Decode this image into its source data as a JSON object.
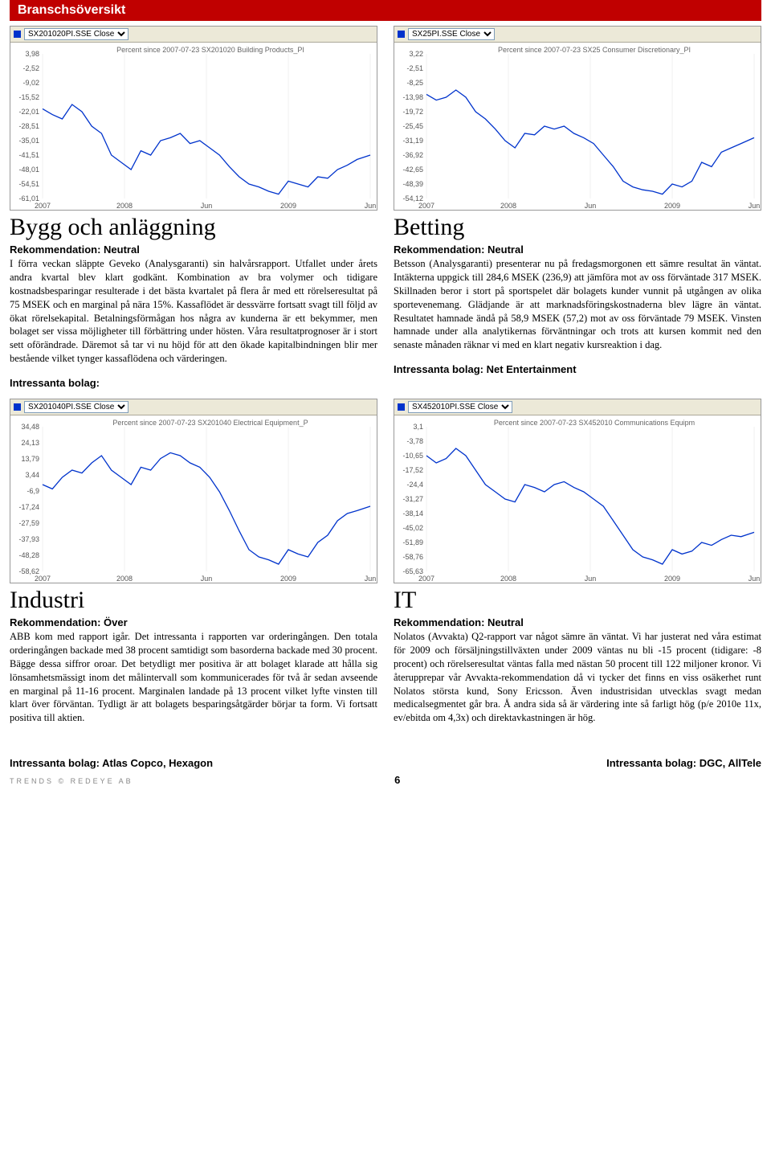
{
  "header": "Branschsöversikt",
  "sections": [
    {
      "title": "Bygg och anläggning",
      "rek": "Rekommendation: Neutral",
      "body": "I förra veckan släppte Geveko (Analysgaranti) sin halvårsrapport. Utfallet under årets andra kvartal blev klart godkänt. Kombination av bra volymer och tidigare kostnadsbesparingar resulterade i det bästa kvartalet på flera år med ett rörelseresultat på 75 MSEK och en marginal på nära 15%. Kassaflödet är dessvärre fortsatt svagt till följd av ökat rörelsekapital. Betalningsförmågan hos några av kunderna är ett bekymmer, men bolaget ser vissa möjligheter till förbättring under hösten. Våra resultatprognoser är i stort sett oförändrade. Däremot så tar vi nu höjd för att den ökade kapitalbindningen blir mer bestående vilket tynger kassaflödena och värderingen.",
      "intr": "Intressanta bolag:",
      "chart": {
        "selector": "SX201020PI.SSE Close",
        "subtitle": "Percent since 2007-07-23     SX201020 Building Products_PI",
        "yticks": [
          "3,98",
          "-2,52",
          "-9,02",
          "-15,52",
          "-22,01",
          "-28,51",
          "-35,01",
          "-41,51",
          "-48,01",
          "-54,51",
          "-61,01"
        ],
        "xticks": [
          "2007",
          "2008",
          "Jun",
          "2009",
          "Jun"
        ],
        "line_color": "#0033cc",
        "grid_color": "#e0e0e0",
        "points": [
          [
            0,
            62
          ],
          [
            3,
            58
          ],
          [
            6,
            55
          ],
          [
            9,
            65
          ],
          [
            12,
            60
          ],
          [
            15,
            50
          ],
          [
            18,
            45
          ],
          [
            21,
            30
          ],
          [
            24,
            25
          ],
          [
            27,
            20
          ],
          [
            30,
            33
          ],
          [
            33,
            30
          ],
          [
            36,
            40
          ],
          [
            39,
            42
          ],
          [
            42,
            45
          ],
          [
            45,
            38
          ],
          [
            48,
            40
          ],
          [
            51,
            35
          ],
          [
            54,
            30
          ],
          [
            57,
            22
          ],
          [
            60,
            15
          ],
          [
            63,
            10
          ],
          [
            66,
            8
          ],
          [
            69,
            5
          ],
          [
            72,
            3
          ],
          [
            75,
            12
          ],
          [
            78,
            10
          ],
          [
            81,
            8
          ],
          [
            84,
            15
          ],
          [
            87,
            14
          ],
          [
            90,
            20
          ],
          [
            93,
            23
          ],
          [
            96,
            27
          ],
          [
            100,
            30
          ]
        ]
      }
    },
    {
      "title": "Betting",
      "rek": "Rekommendation: Neutral",
      "body": "Betsson (Analysgaranti) presenterar nu på fredagsmorgonen ett sämre resultat än väntat. Intäkterna uppgick till 284,6 MSEK (236,9) att jämföra mot av oss förväntade 317 MSEK. Skillnaden beror i stort på sportspelet där bolagets kunder vunnit på utgången av olika sportevenemang. Glädjande är att marknadsföringskostnaderna blev lägre än väntat. Resultatet hamnade ändå på 58,9 MSEK (57,2) mot av oss förväntade 79 MSEK. Vinsten hamnade under alla analytikernas förväntningar och trots att kursen kommit ned den senaste månaden räknar vi med en klart negativ kursreaktion i dag.",
      "intr": "Intressanta bolag: Net Entertainment",
      "chart": {
        "selector": "SX25PI.SSE Close",
        "subtitle": "Percent since 2007-07-23     SX25 Consumer Discretionary_PI",
        "yticks": [
          "3,22",
          "-2,51",
          "-8,25",
          "-13,98",
          "-19,72",
          "-25,45",
          "-31,19",
          "-36,92",
          "-42,65",
          "-48,39",
          "-54,12"
        ],
        "xticks": [
          "2007",
          "2008",
          "Jun",
          "2009",
          "Jun"
        ],
        "line_color": "#0033cc",
        "grid_color": "#e0e0e0",
        "points": [
          [
            0,
            72
          ],
          [
            3,
            68
          ],
          [
            6,
            70
          ],
          [
            9,
            75
          ],
          [
            12,
            70
          ],
          [
            15,
            60
          ],
          [
            18,
            55
          ],
          [
            21,
            48
          ],
          [
            24,
            40
          ],
          [
            27,
            35
          ],
          [
            30,
            45
          ],
          [
            33,
            44
          ],
          [
            36,
            50
          ],
          [
            39,
            48
          ],
          [
            42,
            50
          ],
          [
            45,
            45
          ],
          [
            48,
            42
          ],
          [
            51,
            38
          ],
          [
            54,
            30
          ],
          [
            57,
            22
          ],
          [
            60,
            12
          ],
          [
            63,
            8
          ],
          [
            66,
            6
          ],
          [
            69,
            5
          ],
          [
            72,
            3
          ],
          [
            75,
            10
          ],
          [
            78,
            8
          ],
          [
            81,
            12
          ],
          [
            84,
            25
          ],
          [
            87,
            22
          ],
          [
            90,
            32
          ],
          [
            93,
            35
          ],
          [
            96,
            38
          ],
          [
            100,
            42
          ]
        ]
      }
    },
    {
      "title": "Industri",
      "rek": "Rekommendation: Över",
      "body": "ABB kom med rapport igår. Det intressanta i rapporten var orderingången. Den totala orderingången backade med 38 procent samtidigt som basorderna backade med 30 procent. Bägge dessa siffror oroar. Det betydligt mer positiva är att bolaget klarade att hålla sig lönsamhetsmässigt inom det målintervall som kommunicerades för två år sedan avseende en marginal på 11-16 procent. Marginalen landade på 13 procent vilket lyfte vinsten till klart över förväntan. Tydligt är att bolagets besparingsåtgärder börjar ta form. Vi fortsatt positiva till aktien.",
      "intr": "Intressanta bolag: Atlas Copco, Hexagon",
      "chart": {
        "selector": "SX201040PI.SSE Close",
        "subtitle": "Percent since 2007-07-23     SX201040 Electrical Equipment_P",
        "yticks": [
          "34,48",
          "24,13",
          "13,79",
          "3,44",
          "-6,9",
          "-17,24",
          "-27,59",
          "-37,93",
          "-48,28",
          "-58,62"
        ],
        "xticks": [
          "2007",
          "2008",
          "Jun",
          "2009",
          "Jun"
        ],
        "line_color": "#0033cc",
        "grid_color": "#e0e0e0",
        "points": [
          [
            0,
            60
          ],
          [
            3,
            57
          ],
          [
            6,
            65
          ],
          [
            9,
            70
          ],
          [
            12,
            68
          ],
          [
            15,
            75
          ],
          [
            18,
            80
          ],
          [
            21,
            70
          ],
          [
            24,
            65
          ],
          [
            27,
            60
          ],
          [
            30,
            72
          ],
          [
            33,
            70
          ],
          [
            36,
            78
          ],
          [
            39,
            82
          ],
          [
            42,
            80
          ],
          [
            45,
            75
          ],
          [
            48,
            72
          ],
          [
            51,
            65
          ],
          [
            54,
            55
          ],
          [
            57,
            42
          ],
          [
            60,
            28
          ],
          [
            63,
            15
          ],
          [
            66,
            10
          ],
          [
            69,
            8
          ],
          [
            72,
            5
          ],
          [
            75,
            15
          ],
          [
            78,
            12
          ],
          [
            81,
            10
          ],
          [
            84,
            20
          ],
          [
            87,
            25
          ],
          [
            90,
            35
          ],
          [
            93,
            40
          ],
          [
            96,
            42
          ],
          [
            100,
            45
          ]
        ]
      }
    },
    {
      "title": "IT",
      "rek": "Rekommendation: Neutral",
      "body": "Nolatos (Avvakta) Q2-rapport var något sämre än väntat. Vi har justerat ned våra estimat för 2009 och försäljningstillväxten under 2009 väntas nu bli -15 procent (tidigare: -8 procent) och rörelseresultat väntas falla med nästan 50 procent till 122 miljoner kronor. Vi återupprepar vår Avvakta-rekommendation då vi tycker det finns en viss osäkerhet runt Nolatos största kund, Sony Ericsson. Även industrisidan utvecklas svagt medan medicalsegmentet går bra. Å andra sida så är värdering inte så farligt hög (p/e 2010e 11x, ev/ebitda om 4,3x) och direktavkastningen är hög.",
      "intr": "Intressanta bolag: DGC, AllTele",
      "chart": {
        "selector": "SX452010PI.SSE Close",
        "subtitle": "Percent since 2007-07-23     SX452010 Communications Equipm",
        "yticks": [
          "3,1",
          "-3,78",
          "-10,65",
          "-17,52",
          "-24,4",
          "-31,27",
          "-38,14",
          "-45,02",
          "-51,89",
          "-58,76",
          "-65,63"
        ],
        "xticks": [
          "2007",
          "2008",
          "Jun",
          "2009",
          "Jun"
        ],
        "line_color": "#0033cc",
        "grid_color": "#e0e0e0",
        "points": [
          [
            0,
            80
          ],
          [
            3,
            75
          ],
          [
            6,
            78
          ],
          [
            9,
            85
          ],
          [
            12,
            80
          ],
          [
            15,
            70
          ],
          [
            18,
            60
          ],
          [
            21,
            55
          ],
          [
            24,
            50
          ],
          [
            27,
            48
          ],
          [
            30,
            60
          ],
          [
            33,
            58
          ],
          [
            36,
            55
          ],
          [
            39,
            60
          ],
          [
            42,
            62
          ],
          [
            45,
            58
          ],
          [
            48,
            55
          ],
          [
            51,
            50
          ],
          [
            54,
            45
          ],
          [
            57,
            35
          ],
          [
            60,
            25
          ],
          [
            63,
            15
          ],
          [
            66,
            10
          ],
          [
            69,
            8
          ],
          [
            72,
            5
          ],
          [
            75,
            15
          ],
          [
            78,
            12
          ],
          [
            81,
            14
          ],
          [
            84,
            20
          ],
          [
            87,
            18
          ],
          [
            90,
            22
          ],
          [
            93,
            25
          ],
          [
            96,
            24
          ],
          [
            100,
            27
          ]
        ]
      }
    }
  ],
  "footer": {
    "left": "Intressanta bolag: Atlas Copco, Hexagon",
    "right": "Intressanta bolag:  DGC, AllTele",
    "line": "TRENDS   ©  REDEYE  AB",
    "page": "6"
  }
}
